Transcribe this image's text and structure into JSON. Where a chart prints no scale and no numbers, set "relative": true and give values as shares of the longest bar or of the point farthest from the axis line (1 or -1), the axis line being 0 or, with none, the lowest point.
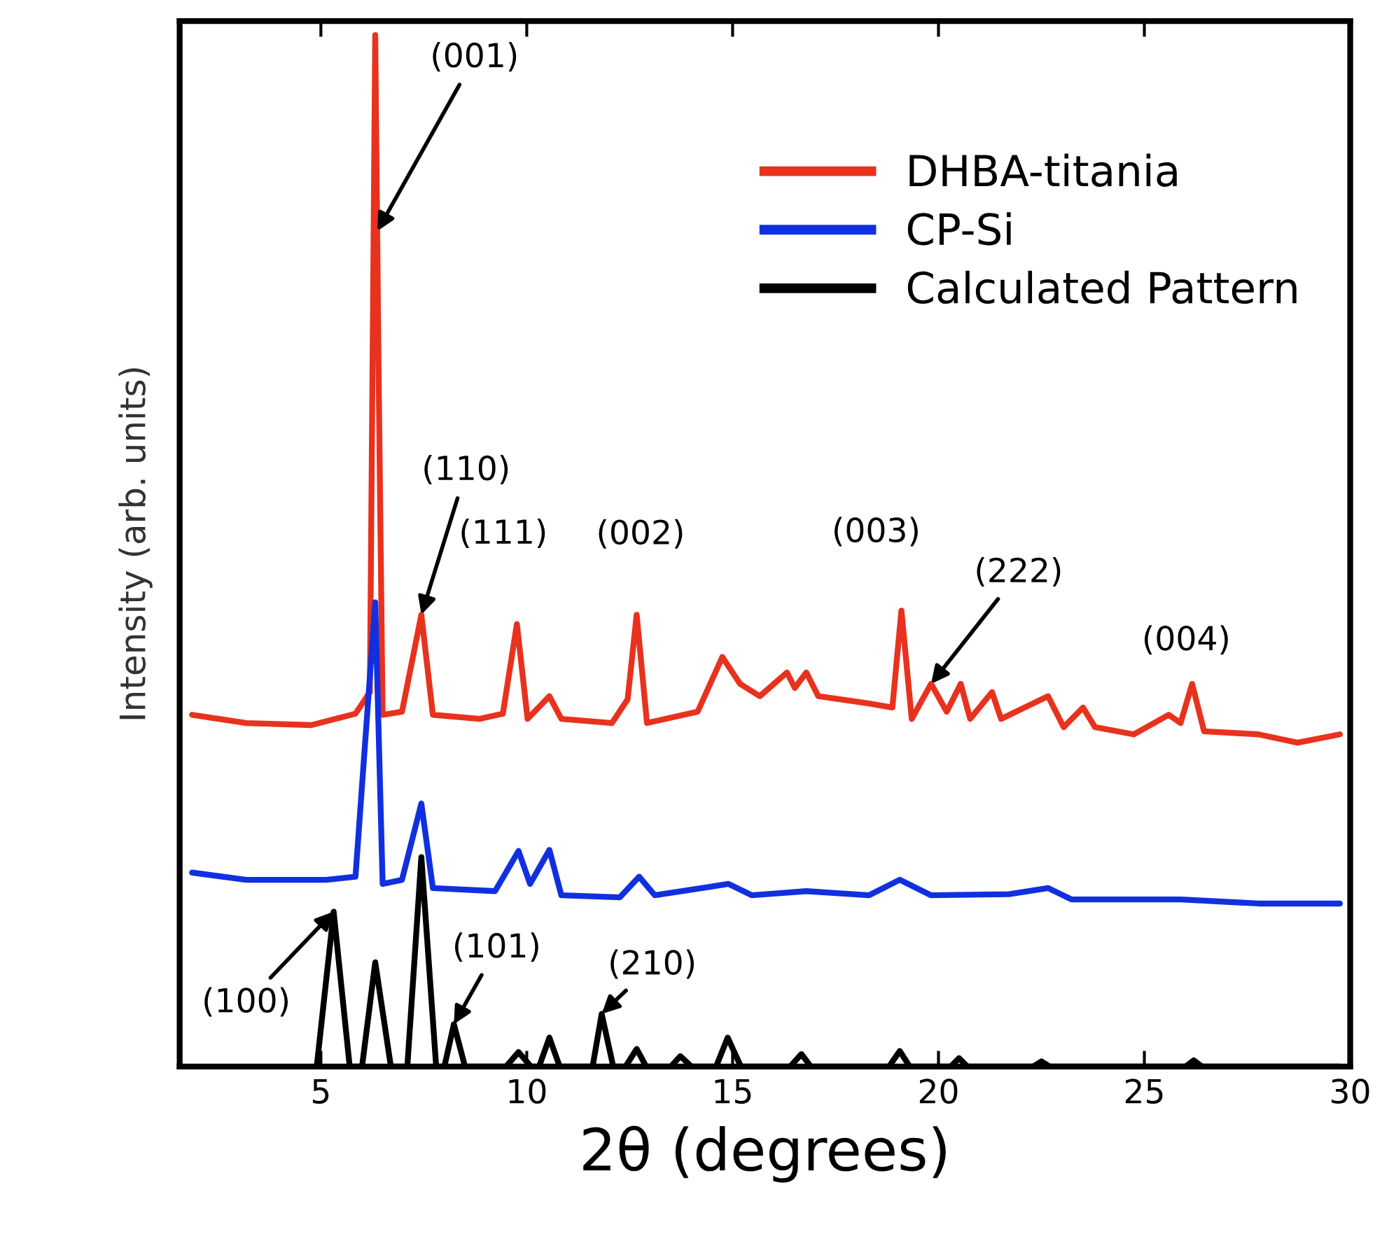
{
  "chart_data": {
    "type": "line",
    "relative": true,
    "xlabel": "2θ (degrees)",
    "ylabel": "Intensity (arb. units)",
    "xlim": [
      1.57,
      30
    ],
    "xticks": [
      5,
      10,
      15,
      20,
      25,
      30
    ],
    "legend": "top right",
    "grid": false,
    "marker": "none",
    "line_style": "solid",
    "series": [
      {
        "name": "DHBA-titania",
        "color": "#e8321e",
        "x": [
          1.87,
          3.19,
          4.77,
          5.84,
          6.19,
          6.32,
          6.4,
          6.5,
          6.97,
          7.44,
          7.72,
          8.85,
          9.42,
          9.76,
          10.02,
          10.55,
          10.84,
          12.07,
          12.45,
          12.67,
          12.92,
          14.15,
          14.75,
          15.18,
          15.66,
          16.32,
          16.51,
          16.79,
          17.08,
          18.31,
          18.88,
          19.1,
          19.35,
          19.82,
          20.2,
          20.54,
          20.77,
          21.3,
          21.52,
          22.66,
          23.04,
          23.51,
          23.8,
          24.74,
          25.59,
          25.88,
          26.16,
          26.45,
          27.77,
          28.72,
          29.75
        ],
        "values": [
          0.341,
          0.333,
          0.331,
          0.342,
          0.363,
          1.0,
          0.681,
          0.341,
          0.344,
          0.438,
          0.341,
          0.337,
          0.342,
          0.429,
          0.337,
          0.359,
          0.337,
          0.333,
          0.356,
          0.438,
          0.333,
          0.344,
          0.397,
          0.371,
          0.359,
          0.382,
          0.367,
          0.382,
          0.359,
          0.352,
          0.348,
          0.442,
          0.337,
          0.371,
          0.344,
          0.371,
          0.337,
          0.363,
          0.337,
          0.359,
          0.329,
          0.348,
          0.329,
          0.322,
          0.341,
          0.333,
          0.371,
          0.325,
          0.322,
          0.314,
          0.322
        ]
      },
      {
        "name": "CP-Si",
        "color": "#1030e0",
        "x": [
          1.87,
          3.19,
          5.13,
          5.84,
          6.32,
          6.5,
          6.97,
          7.44,
          7.72,
          9.23,
          9.8,
          10.08,
          10.55,
          10.84,
          12.26,
          12.73,
          13.11,
          14.9,
          15.47,
          16.79,
          18.31,
          19.06,
          19.82,
          21.71,
          22.66,
          23.23,
          25.88,
          27.77,
          29.75
        ],
        "values": [
          0.188,
          0.181,
          0.181,
          0.184,
          0.45,
          0.177,
          0.181,
          0.255,
          0.173,
          0.17,
          0.209,
          0.177,
          0.21,
          0.166,
          0.164,
          0.184,
          0.166,
          0.177,
          0.166,
          0.17,
          0.166,
          0.181,
          0.166,
          0.167,
          0.173,
          0.162,
          0.162,
          0.158,
          0.158
        ]
      },
      {
        "name": "Calculated Pattern",
        "color": "#000000",
        "x": [
          4.9,
          5.31,
          5.7,
          6.0,
          6.32,
          6.7,
          7.1,
          7.44,
          7.8,
          8.0,
          8.23,
          8.5,
          9.5,
          9.8,
          10.1,
          10.3,
          10.55,
          10.8,
          11.6,
          11.82,
          12.1,
          12.4,
          12.67,
          12.9,
          13.5,
          13.73,
          14.0,
          14.6,
          14.88,
          15.2,
          16.4,
          16.67,
          16.9,
          18.8,
          19.06,
          19.3,
          20.3,
          20.5,
          20.7,
          22.3,
          22.5,
          22.7,
          26.0,
          26.2,
          26.4,
          29.75
        ],
        "values": [
          0.0,
          0.15,
          0.0,
          0.0,
          0.101,
          0.0,
          0.0,
          0.203,
          0.0,
          0.0,
          0.041,
          0.0,
          0.0,
          0.014,
          0.0,
          0.0,
          0.028,
          0.0,
          0.0,
          0.051,
          0.0,
          0.0,
          0.017,
          0.0,
          0.0,
          0.01,
          0.0,
          0.0,
          0.028,
          0.0,
          0.0,
          0.012,
          0.0,
          0.0,
          0.015,
          0.0,
          0.0,
          0.008,
          0.0,
          0.0,
          0.005,
          0.0,
          0.0,
          0.006,
          0.0,
          0.0
        ]
      }
    ],
    "annotations": [
      {
        "text": "(001)",
        "x": 6.37,
        "y": 0.81
      },
      {
        "text": "(110)",
        "x": 7.44,
        "y": 0.438
      },
      {
        "text": "(111)",
        "x": 9.76,
        "y": 0.429
      },
      {
        "text": "(002)",
        "x": 12.67,
        "y": 0.438
      },
      {
        "text": "(003)",
        "x": 19.1,
        "y": 0.442
      },
      {
        "text": "(222)",
        "x": 19.82,
        "y": 0.371
      },
      {
        "text": "(004)",
        "x": 26.16,
        "y": 0.371
      },
      {
        "text": "(100)",
        "x": 5.31,
        "y": 0.15
      },
      {
        "text": "(101)",
        "x": 8.23,
        "y": 0.041
      },
      {
        "text": "(210)",
        "x": 11.82,
        "y": 0.051
      }
    ]
  }
}
